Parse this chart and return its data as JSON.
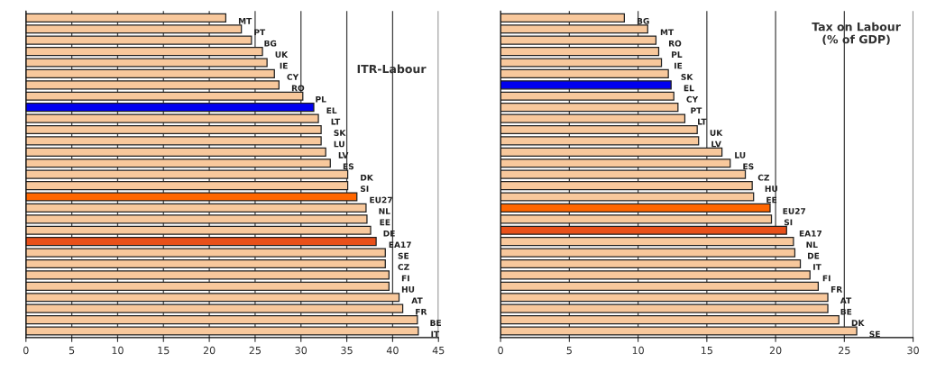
{
  "chart_data": [
    {
      "type": "bar",
      "orientation": "horizontal",
      "title": "ITR-Labour",
      "categories": [
        "MT",
        "PT",
        "BG",
        "UK",
        "IE",
        "CY",
        "RO",
        "PL",
        "EL",
        "LT",
        "SK",
        "LU",
        "LV",
        "ES",
        "DK",
        "SI",
        "EU27",
        "NL",
        "EE",
        "DE",
        "EA17",
        "SE",
        "CZ",
        "FI",
        "HU",
        "AT",
        "FR",
        "BE",
        "IT"
      ],
      "values": [
        21.8,
        23.5,
        24.6,
        25.8,
        26.3,
        27.1,
        27.6,
        30.2,
        31.4,
        31.9,
        32.2,
        32.2,
        32.7,
        33.2,
        35.1,
        35.1,
        36.1,
        37.1,
        37.2,
        37.6,
        38.2,
        39.2,
        39.2,
        39.6,
        39.6,
        40.7,
        41.1,
        42.7,
        42.8
      ],
      "colors": [
        "#f8c89c",
        "#f8c89c",
        "#f8c89c",
        "#f8c89c",
        "#f8c89c",
        "#f8c89c",
        "#f8c89c",
        "#f8c89c",
        "#0000f0",
        "#f8c89c",
        "#f8c89c",
        "#f8c89c",
        "#f8c89c",
        "#f8c89c",
        "#f8c89c",
        "#f8c89c",
        "#ff6600",
        "#f8c89c",
        "#f8c89c",
        "#f8c89c",
        "#e8501a",
        "#f8c89c",
        "#f8c89c",
        "#f8c89c",
        "#f8c89c",
        "#f8c89c",
        "#f8c89c",
        "#f8c89c",
        "#f8c89c"
      ],
      "xlim": [
        0,
        45
      ],
      "xticks": [
        0,
        5,
        10,
        15,
        20,
        25,
        30,
        35,
        40,
        45
      ],
      "grid": "x",
      "tick_labels": "x"
    },
    {
      "type": "bar",
      "orientation": "horizontal",
      "title": "Tax on Labour\n(% of GDP)",
      "categories": [
        "BG",
        "MT",
        "RO",
        "PL",
        "IE",
        "SK",
        "EL",
        "CY",
        "PT",
        "LT",
        "UK",
        "LV",
        "LU",
        "ES",
        "CZ",
        "HU",
        "EE",
        "EU27",
        "SI",
        "EA17",
        "NL",
        "DE",
        "IT",
        "FI",
        "FR",
        "AT",
        "BE",
        "DK",
        "SE"
      ],
      "values": [
        9.0,
        10.7,
        11.3,
        11.5,
        11.7,
        12.2,
        12.4,
        12.6,
        12.9,
        13.4,
        14.3,
        14.4,
        16.1,
        16.7,
        17.8,
        18.3,
        18.4,
        19.6,
        19.7,
        20.8,
        21.3,
        21.4,
        21.8,
        22.5,
        23.1,
        23.8,
        23.8,
        24.6,
        25.9
      ],
      "colors": [
        "#f8c89c",
        "#f8c89c",
        "#f8c89c",
        "#f8c89c",
        "#f8c89c",
        "#f8c89c",
        "#0000f0",
        "#f8c89c",
        "#f8c89c",
        "#f8c89c",
        "#f8c89c",
        "#f8c89c",
        "#f8c89c",
        "#f8c89c",
        "#f8c89c",
        "#f8c89c",
        "#f8c89c",
        "#ff6600",
        "#f8c89c",
        "#e8501a",
        "#f8c89c",
        "#f8c89c",
        "#f8c89c",
        "#f8c89c",
        "#f8c89c",
        "#f8c89c",
        "#f8c89c",
        "#f8c89c",
        "#f8c89c"
      ],
      "xlim": [
        0,
        30
      ],
      "xticks": [
        0,
        5,
        10,
        15,
        20,
        25,
        30
      ],
      "grid": "x",
      "tick_labels": "x"
    }
  ]
}
